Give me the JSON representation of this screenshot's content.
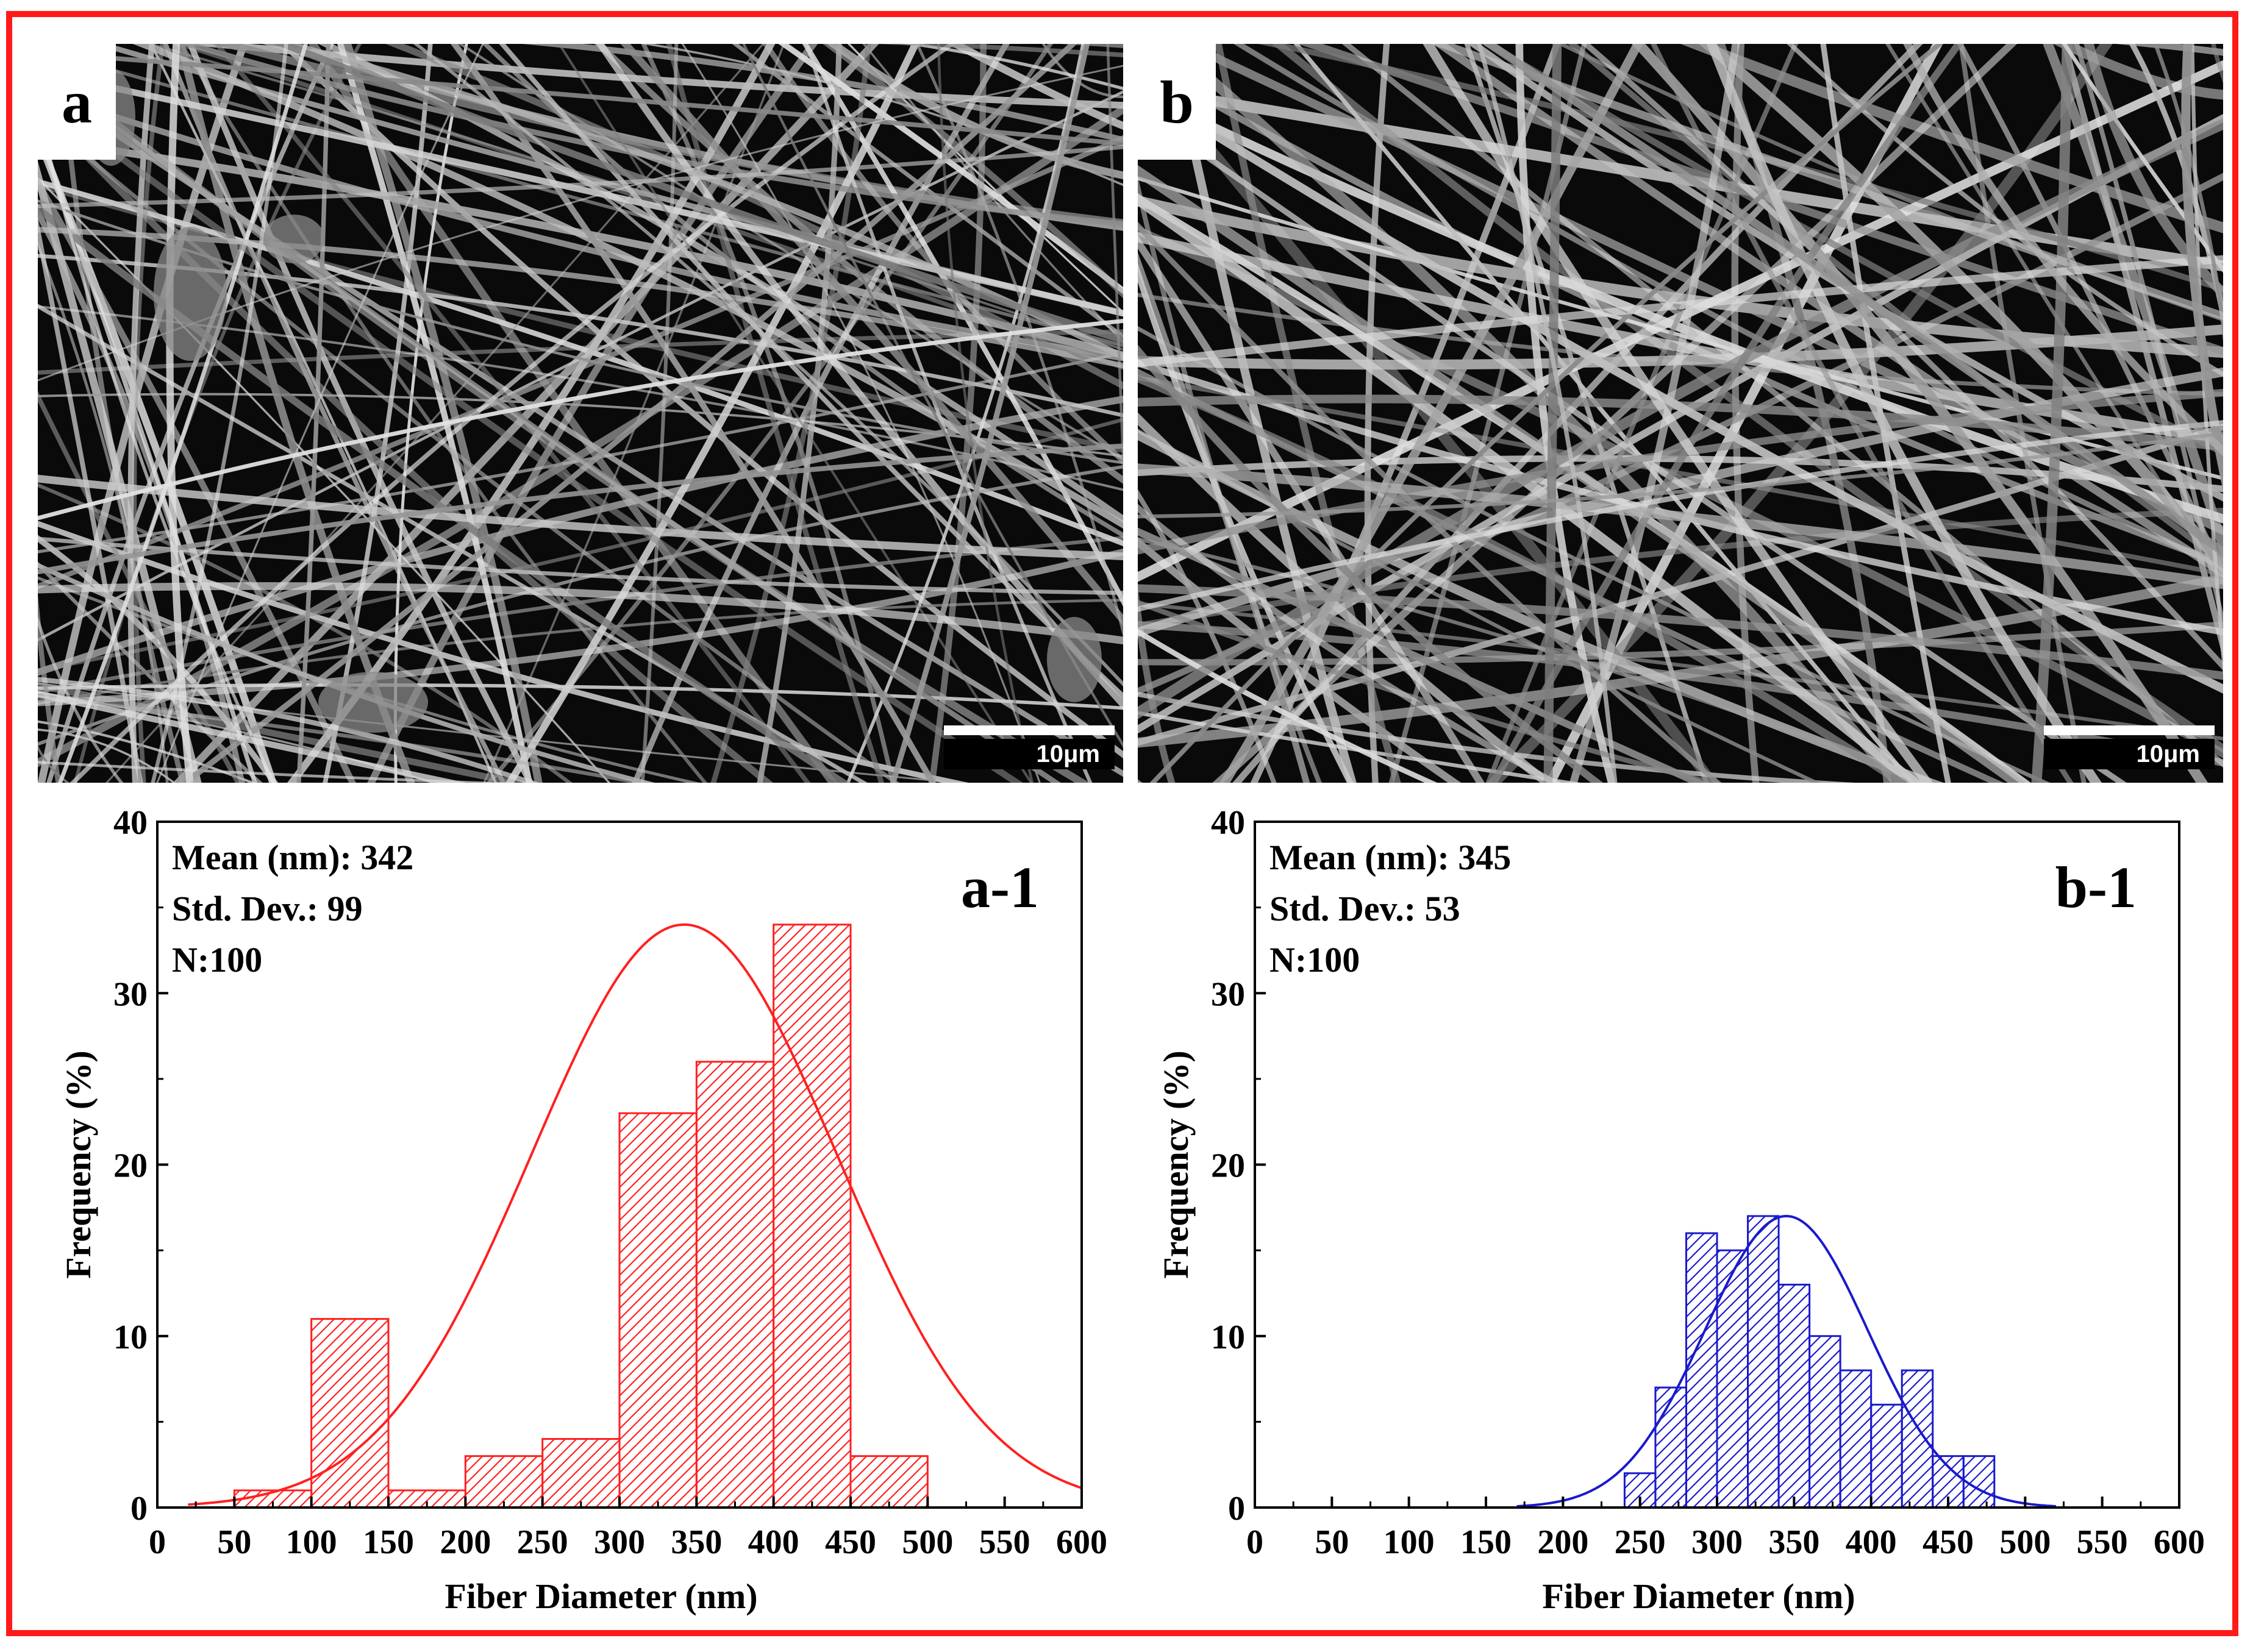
{
  "figure": {
    "panels": [
      {
        "id": "a",
        "label": "a",
        "scale_bar": "10μm",
        "image": "SEM micrograph of dense, bead-containing fibrous mat"
      },
      {
        "id": "b",
        "label": "b",
        "scale_bar": "10μm",
        "image": "SEM micrograph of uniform fibrous mat"
      }
    ]
  },
  "chart_data": [
    {
      "type": "bar",
      "panel": "a-1",
      "title": "a-1",
      "xlabel": "Fiber Diameter (nm)",
      "ylabel": "Frequency (%)",
      "xlim": [
        0,
        600
      ],
      "ylim": [
        0,
        40
      ],
      "xticks": [
        0,
        50,
        100,
        150,
        200,
        250,
        300,
        350,
        400,
        450,
        500,
        550,
        600
      ],
      "yticks": [
        0,
        10,
        20,
        30,
        40
      ],
      "color": "#ff2020",
      "bins": [
        {
          "x0": 50,
          "x1": 100,
          "value": 1
        },
        {
          "x0": 100,
          "x1": 150,
          "value": 11
        },
        {
          "x0": 150,
          "x1": 200,
          "value": 1
        },
        {
          "x0": 200,
          "x1": 250,
          "value": 3
        },
        {
          "x0": 250,
          "x1": 300,
          "value": 4
        },
        {
          "x0": 300,
          "x1": 350,
          "value": 23
        },
        {
          "x0": 350,
          "x1": 400,
          "value": 26
        },
        {
          "x0": 400,
          "x1": 450,
          "value": 34
        },
        {
          "x0": 450,
          "x1": 500,
          "value": 3
        }
      ],
      "fit": {
        "kind": "normal",
        "mean": 342,
        "sd": 99,
        "peak": 34,
        "x_start": 20,
        "x_end": 600
      },
      "stats": {
        "mean_line": "Mean (nm): 342",
        "std_line": "Std. Dev.: 99",
        "n_line": "N:100"
      }
    },
    {
      "type": "bar",
      "panel": "b-1",
      "title": "b-1",
      "xlabel": "Fiber Diameter (nm)",
      "ylabel": "Frequency (%)",
      "xlim": [
        0,
        600
      ],
      "ylim": [
        0,
        40
      ],
      "xticks": [
        0,
        50,
        100,
        150,
        200,
        250,
        300,
        350,
        400,
        450,
        500,
        550,
        600
      ],
      "yticks": [
        0,
        10,
        20,
        30,
        40
      ],
      "color": "#1a1acc",
      "bins": [
        {
          "x0": 240,
          "x1": 260,
          "value": 2
        },
        {
          "x0": 260,
          "x1": 280,
          "value": 7
        },
        {
          "x0": 280,
          "x1": 300,
          "value": 16
        },
        {
          "x0": 300,
          "x1": 320,
          "value": 15
        },
        {
          "x0": 320,
          "x1": 340,
          "value": 17
        },
        {
          "x0": 340,
          "x1": 360,
          "value": 13
        },
        {
          "x0": 360,
          "x1": 380,
          "value": 10
        },
        {
          "x0": 380,
          "x1": 400,
          "value": 8
        },
        {
          "x0": 400,
          "x1": 420,
          "value": 6
        },
        {
          "x0": 420,
          "x1": 440,
          "value": 8
        },
        {
          "x0": 440,
          "x1": 460,
          "value": 3
        },
        {
          "x0": 460,
          "x1": 480,
          "value": 3
        }
      ],
      "fit": {
        "kind": "normal",
        "mean": 345,
        "sd": 53,
        "peak": 17,
        "x_start": 170,
        "x_end": 520
      },
      "stats": {
        "mean_line": "Mean (nm): 345",
        "std_line": "Std. Dev.: 53",
        "n_line": "N:100"
      }
    }
  ]
}
